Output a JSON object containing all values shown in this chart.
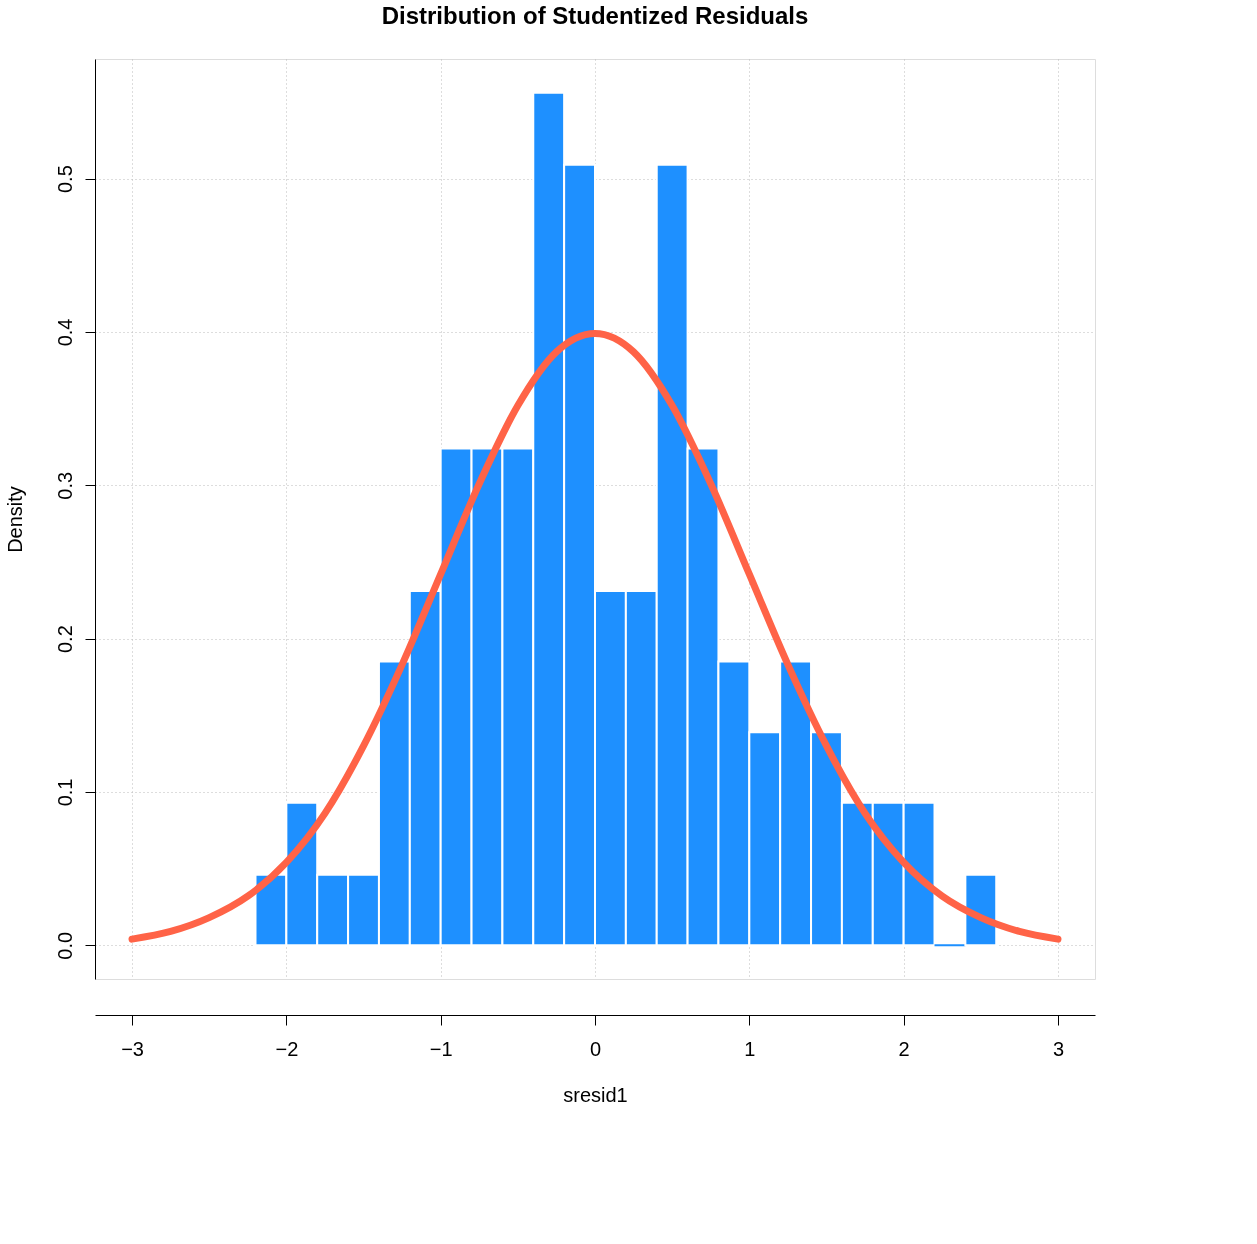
{
  "chart_data": {
    "type": "histogram",
    "title": "Distribution of Studentized Residuals",
    "xlabel": "sresid1",
    "ylabel": "Density",
    "xlim": [
      -3.24,
      3.24
    ],
    "ylim": [
      -0.022,
      0.578
    ],
    "xticks": [
      {
        "value": -3,
        "label": "−3"
      },
      {
        "value": -2,
        "label": "−2"
      },
      {
        "value": -1,
        "label": "−1"
      },
      0,
      1,
      2,
      3
    ],
    "yticks": [
      {
        "value": 0,
        "label": "0.0"
      },
      0.1,
      0.2,
      0.3,
      0.4,
      0.5
    ],
    "grid": true,
    "series": [
      {
        "color": "#1e90ff",
        "bins": [
          -2.2,
          -2.0,
          -1.8,
          -1.6,
          -1.4,
          -1.2,
          -1.0,
          -0.8,
          -0.6,
          -0.4,
          -0.2,
          0,
          0.2,
          0.4,
          0.6,
          0.8,
          1.0,
          1.2,
          1.4,
          1.6,
          1.8,
          2.0,
          2.2,
          2.4,
          2.6
        ],
        "values": [
          0.046,
          0.093,
          0.046,
          0.046,
          0.185,
          0.231,
          0.324,
          0.324,
          0.324,
          0.556,
          0.509,
          0.231,
          0.231,
          0.509,
          0.324,
          0.185,
          0.139,
          0.185,
          0.139,
          0.093,
          0.093,
          0.093,
          0,
          0.046
        ]
      },
      {
        "type": "line",
        "color": "#ff6347",
        "x": [
          -3,
          -2.75,
          -2.5,
          -2.25,
          -2,
          -1.75,
          -1.5,
          -1.25,
          -1,
          -0.75,
          -0.5,
          -0.25,
          0,
          0.25,
          0.5,
          0.75,
          1,
          1.25,
          1.5,
          1.75,
          2,
          2.25,
          2.5,
          2.75,
          3
        ],
        "values": [
          0.004,
          0.009,
          0.018,
          0.032,
          0.054,
          0.086,
          0.13,
          0.183,
          0.242,
          0.301,
          0.352,
          0.387,
          0.399,
          0.387,
          0.352,
          0.301,
          0.242,
          0.183,
          0.13,
          0.086,
          0.054,
          0.032,
          0.018,
          0.009,
          0.004
        ]
      }
    ]
  }
}
